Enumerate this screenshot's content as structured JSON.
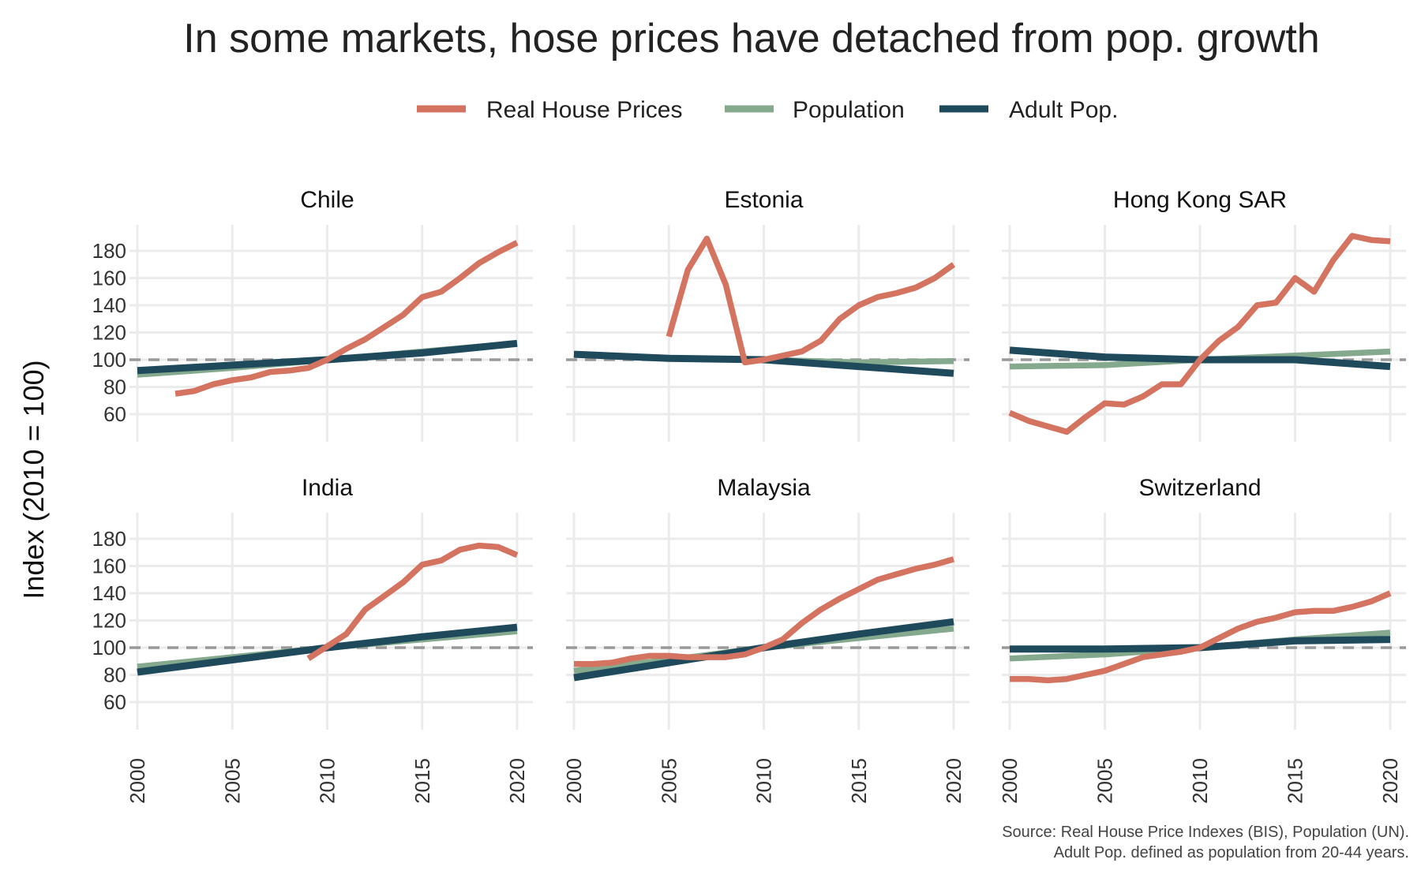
{
  "chart_data": {
    "type": "line",
    "title": "In some markets, hose prices have detached from pop. growth",
    "ylabel": "Index (2010 = 100)",
    "caption": [
      "Source: Real House Price Indexes (BIS), Population (UN).",
      "Adult Pop. defined as population from 20-44 years."
    ],
    "legend_position": "top",
    "grid": true,
    "reference_line": 100,
    "xlim": [
      2000,
      2020
    ],
    "ylim": [
      40,
      195
    ],
    "x_ticks": [
      2000,
      2005,
      2010,
      2015,
      2020
    ],
    "y_ticks": [
      60,
      80,
      100,
      120,
      140,
      160,
      180
    ],
    "series_styles": [
      {
        "name": "Real House Prices",
        "color": "#d4735f"
      },
      {
        "name": "Population",
        "color": "#84a98c"
      },
      {
        "name": "Adult Pop.",
        "color": "#1f4a5c"
      }
    ],
    "panels": [
      {
        "name": "Chile",
        "series": [
          {
            "name": "Real House Prices",
            "x": [
              2002,
              2003,
              2004,
              2005,
              2006,
              2007,
              2008,
              2009,
              2010,
              2011,
              2012,
              2013,
              2014,
              2015,
              2016,
              2017,
              2018,
              2019,
              2020
            ],
            "values": [
              75,
              77,
              82,
              85,
              87,
              91,
              92,
              94,
              100,
              108,
              115,
              124,
              133,
              146,
              150,
              160,
              171,
              179,
              186
            ]
          },
          {
            "name": "Population",
            "x": [
              2000,
              2005,
              2010,
              2015,
              2020
            ],
            "values": [
              89,
              94,
              100,
              106,
              112
            ]
          },
          {
            "name": "Adult Pop.",
            "x": [
              2000,
              2005,
              2010,
              2015,
              2020
            ],
            "values": [
              92,
              96,
              100,
              105,
              112
            ]
          }
        ]
      },
      {
        "name": "Estonia",
        "series": [
          {
            "name": "Real House Prices",
            "x": [
              2005,
              2006,
              2007,
              2008,
              2009,
              2010,
              2011,
              2012,
              2013,
              2014,
              2015,
              2016,
              2017,
              2018,
              2019,
              2020
            ],
            "values": [
              117,
              166,
              189,
              155,
              98,
              100,
              103,
              106,
              114,
              130,
              140,
              146,
              149,
              153,
              160,
              170
            ]
          },
          {
            "name": "Population",
            "x": [
              2000,
              2005,
              2010,
              2015,
              2020
            ],
            "values": [
              104,
              101,
              100,
              98,
              99
            ]
          },
          {
            "name": "Adult Pop.",
            "x": [
              2000,
              2005,
              2010,
              2015,
              2020
            ],
            "values": [
              104,
              101,
              100,
              95,
              90
            ]
          }
        ]
      },
      {
        "name": "Hong Kong SAR",
        "series": [
          {
            "name": "Real House Prices",
            "x": [
              2000,
              2001,
              2002,
              2003,
              2004,
              2005,
              2006,
              2007,
              2008,
              2009,
              2010,
              2011,
              2012,
              2013,
              2014,
              2015,
              2016,
              2017,
              2018,
              2019,
              2020
            ],
            "values": [
              61,
              55,
              51,
              47,
              58,
              68,
              67,
              73,
              82,
              82,
              100,
              114,
              124,
              140,
              142,
              160,
              150,
              173,
              191,
              188,
              187
            ]
          },
          {
            "name": "Population",
            "x": [
              2000,
              2005,
              2010,
              2015,
              2020
            ],
            "values": [
              95,
              96,
              100,
              103,
              106
            ]
          },
          {
            "name": "Adult Pop.",
            "x": [
              2000,
              2003,
              2005,
              2010,
              2015,
              2020
            ],
            "values": [
              107,
              104,
              102,
              100,
              100,
              95
            ]
          }
        ]
      },
      {
        "name": "India",
        "series": [
          {
            "name": "Real House Prices",
            "x": [
              2009,
              2010,
              2011,
              2012,
              2013,
              2014,
              2015,
              2016,
              2017,
              2018,
              2019,
              2020
            ],
            "values": [
              92,
              101,
              110,
              128,
              138,
              148,
              161,
              164,
              172,
              175,
              174,
              168
            ]
          },
          {
            "name": "Population",
            "x": [
              2000,
              2005,
              2010,
              2015,
              2020
            ],
            "values": [
              86,
              93,
              100,
              106,
              112
            ]
          },
          {
            "name": "Adult Pop.",
            "x": [
              2000,
              2005,
              2010,
              2015,
              2020
            ],
            "values": [
              82,
              91,
              100,
              108,
              115
            ]
          }
        ]
      },
      {
        "name": "Malaysia",
        "series": [
          {
            "name": "Real House Prices",
            "x": [
              2000,
              2001,
              2002,
              2003,
              2004,
              2005,
              2006,
              2007,
              2008,
              2009,
              2010,
              2011,
              2012,
              2013,
              2014,
              2015,
              2016,
              2017,
              2018,
              2019,
              2020
            ],
            "values": [
              88,
              88,
              89,
              92,
              94,
              94,
              93,
              93,
              93,
              95,
              100,
              106,
              118,
              128,
              136,
              143,
              150,
              154,
              158,
              161,
              165
            ]
          },
          {
            "name": "Population",
            "x": [
              2000,
              2005,
              2010,
              2015,
              2020
            ],
            "values": [
              83,
              91,
              100,
              107,
              114
            ]
          },
          {
            "name": "Adult Pop.",
            "x": [
              2000,
              2005,
              2010,
              2015,
              2020
            ],
            "values": [
              78,
              89,
              100,
              110,
              119
            ]
          }
        ]
      },
      {
        "name": "Switzerland",
        "series": [
          {
            "name": "Real House Prices",
            "x": [
              2000,
              2001,
              2002,
              2003,
              2004,
              2005,
              2006,
              2007,
              2008,
              2009,
              2010,
              2011,
              2012,
              2013,
              2014,
              2015,
              2016,
              2017,
              2018,
              2019,
              2020
            ],
            "values": [
              77,
              77,
              76,
              77,
              80,
              83,
              88,
              93,
              95,
              97,
              100,
              107,
              114,
              119,
              122,
              126,
              127,
              127,
              130,
              134,
              140
            ]
          },
          {
            "name": "Population",
            "x": [
              2000,
              2005,
              2010,
              2015,
              2020
            ],
            "values": [
              92,
              95,
              100,
              106,
              111
            ]
          },
          {
            "name": "Adult Pop.",
            "x": [
              2000,
              2005,
              2010,
              2015,
              2020
            ],
            "values": [
              99,
              99,
              100,
              105,
              106
            ]
          }
        ]
      }
    ]
  }
}
